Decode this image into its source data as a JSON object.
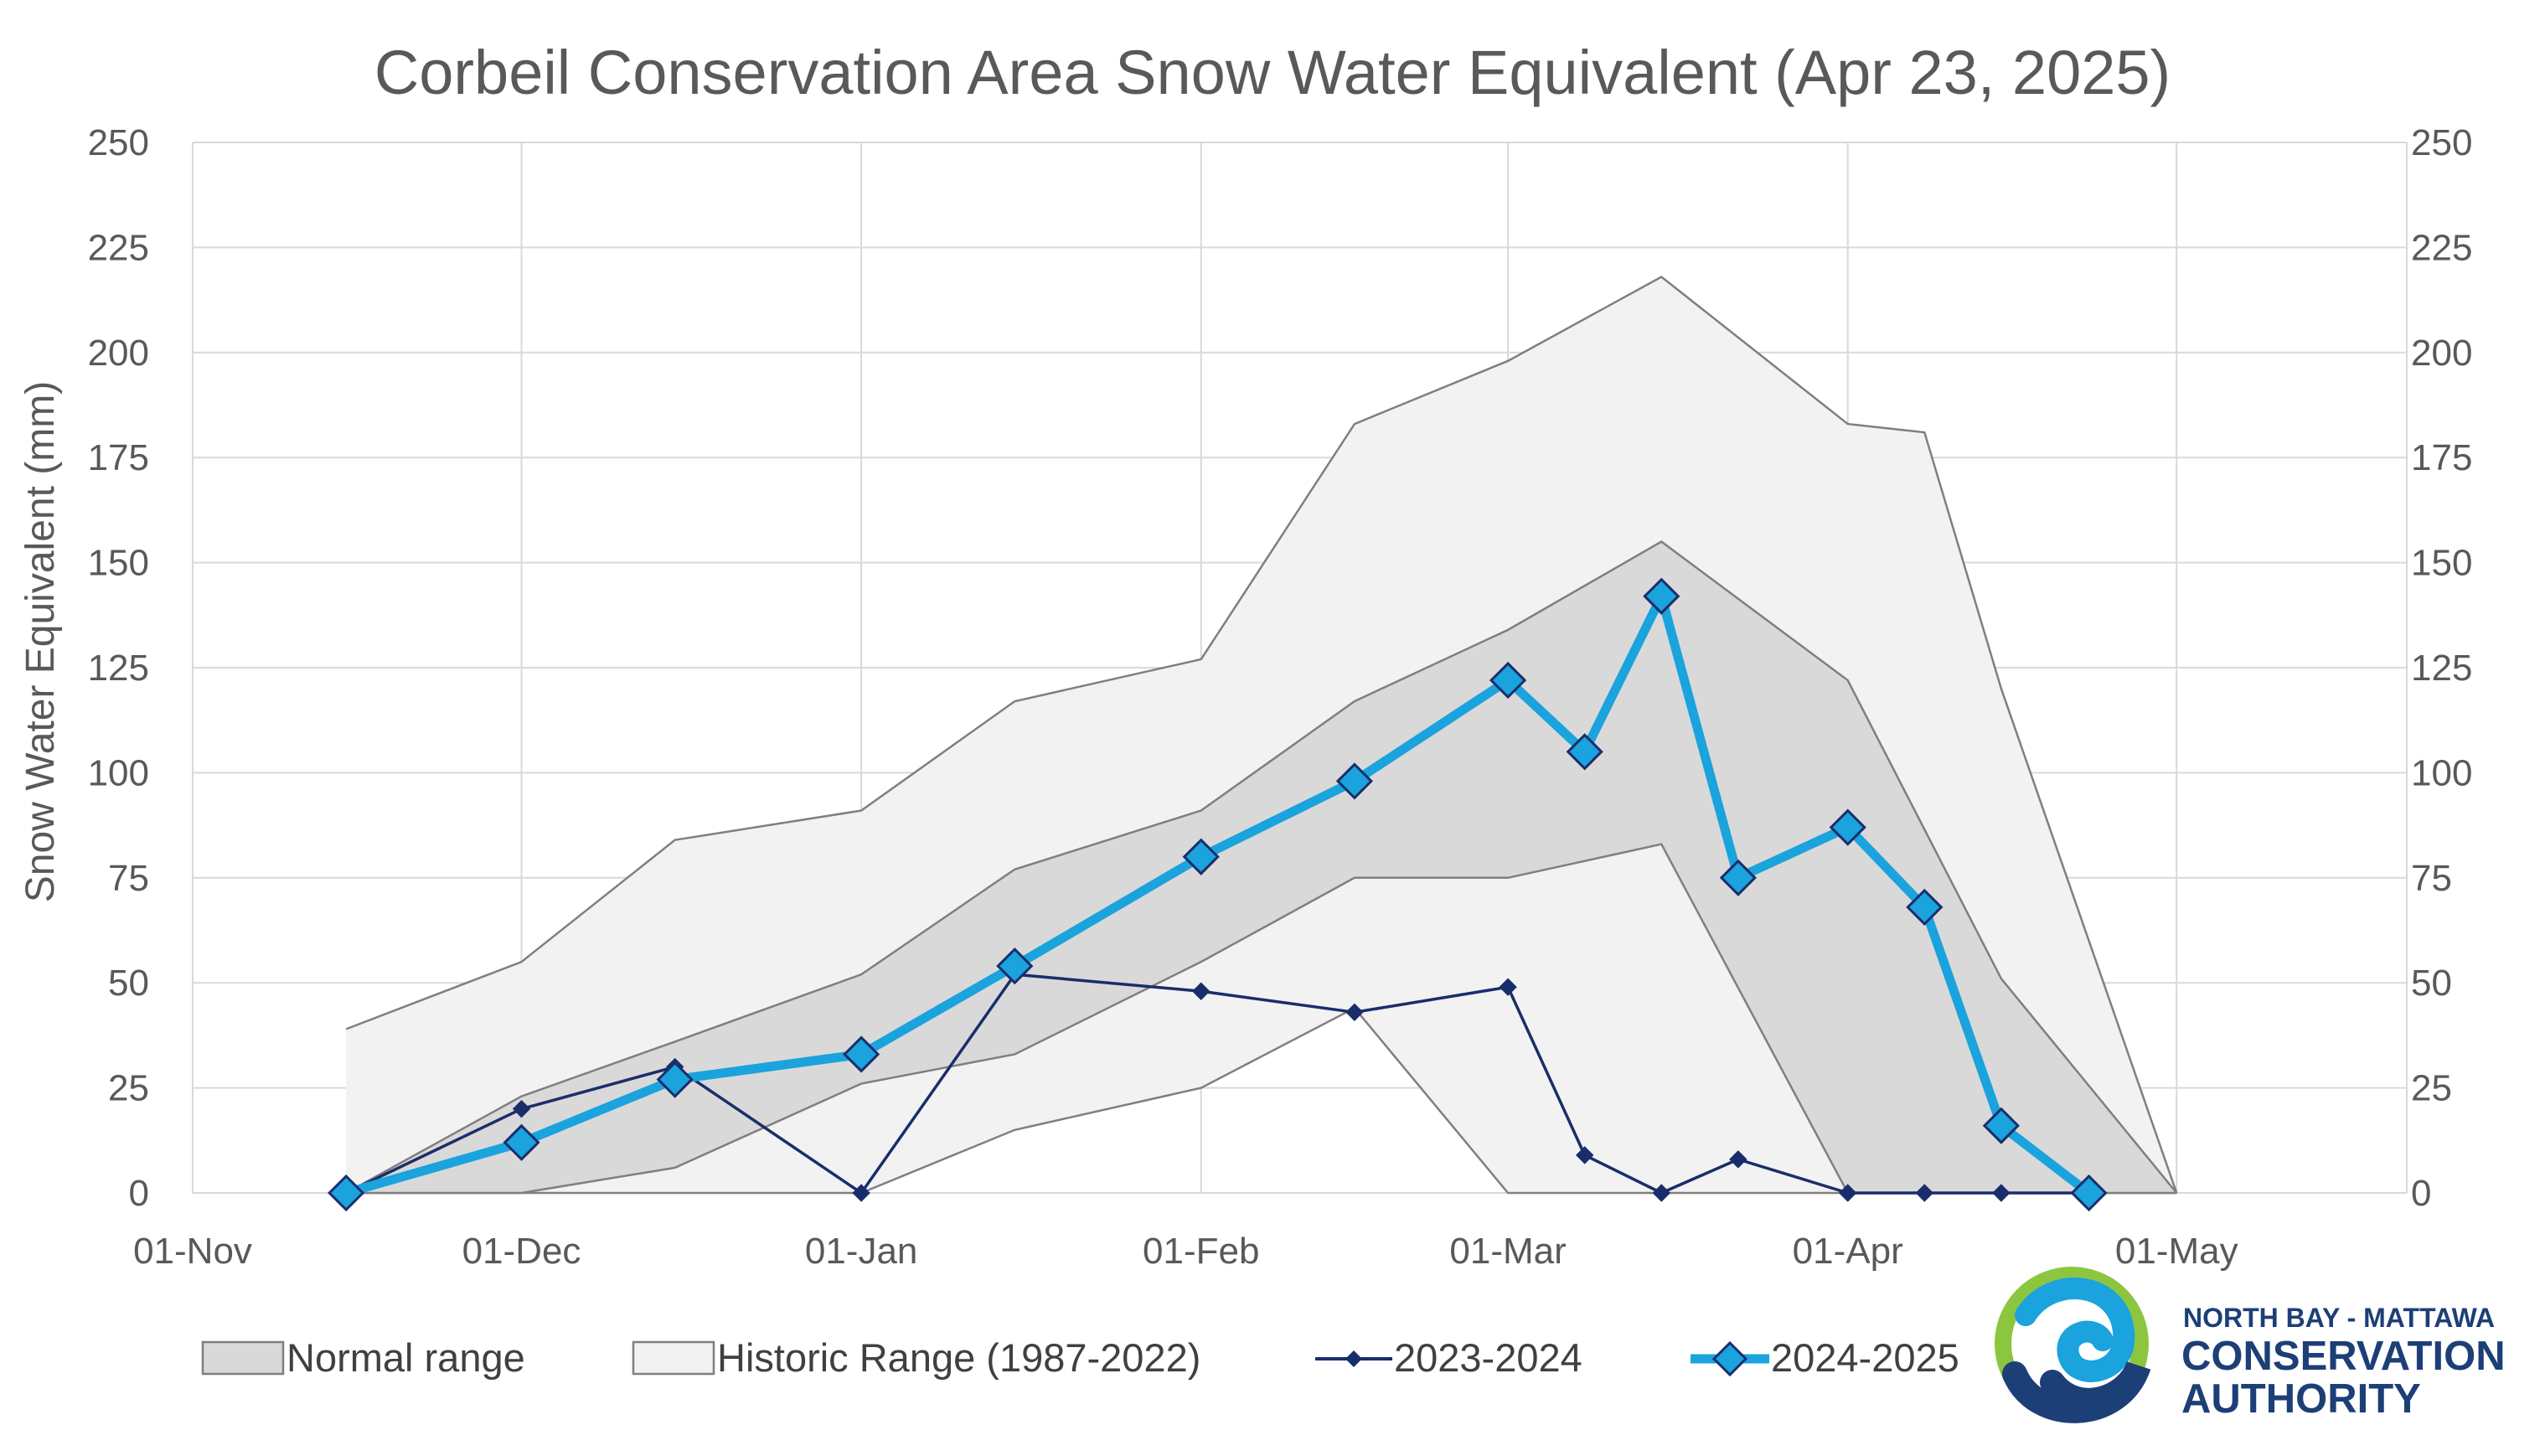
{
  "chart_data": {
    "type": "line",
    "title": "Corbeil Conservation Area Snow Water Equivalent (Apr 23, 2025)",
    "ylabel": "Snow Water Equivalent (mm)",
    "xlabel": "",
    "ylim": [
      0,
      250
    ],
    "y_ticks": [
      0,
      25,
      50,
      75,
      100,
      125,
      150,
      175,
      200,
      225,
      250
    ],
    "y_tick_labels": [
      "0",
      "25",
      "50",
      "75",
      "100",
      "125",
      "150",
      "175",
      "200",
      "225",
      "250"
    ],
    "secondary_y_axis": true,
    "xlim": [
      "2024-11-01",
      "2025-05-22"
    ],
    "x_ticks": [
      "2024-11-01",
      "2024-12-01",
      "2025-01-01",
      "2025-02-01",
      "2025-03-01",
      "2025-04-01",
      "2025-05-01"
    ],
    "x_tick_labels": [
      "01-Nov",
      "01-Dec",
      "01-Jan",
      "01-Feb",
      "01-Mar",
      "01-Apr",
      "01-May"
    ],
    "grid": true,
    "legend_position": "bottom",
    "legend": [
      "Normal range",
      "Historic Range (1987-2022)",
      "2023-2024",
      "2024-2025"
    ],
    "bands": [
      {
        "name": "Historic Range (1987-2022)",
        "color": "#f2f2f2",
        "border": "#7f7f7f",
        "x": [
          "2024-11-15",
          "2024-12-01",
          "2024-12-15",
          "2025-01-01",
          "2025-01-15",
          "2025-02-01",
          "2025-02-15",
          "2025-03-01",
          "2025-03-15",
          "2025-04-01",
          "2025-04-08",
          "2025-04-15",
          "2025-05-01"
        ],
        "upper": [
          39,
          55,
          84,
          91,
          117,
          127,
          183,
          198,
          218,
          183,
          181,
          120,
          0
        ],
        "lower": [
          0,
          0,
          0,
          0,
          15,
          25,
          44,
          0,
          0,
          0,
          0,
          0,
          0
        ]
      },
      {
        "name": "Normal range",
        "color": "#d9d9d9",
        "border": "#7f7f7f",
        "x": [
          "2024-11-15",
          "2024-12-01",
          "2024-12-15",
          "2025-01-01",
          "2025-01-15",
          "2025-02-01",
          "2025-02-15",
          "2025-03-01",
          "2025-03-15",
          "2025-04-01",
          "2025-04-15",
          "2025-05-01"
        ],
        "upper": [
          0,
          23,
          36,
          52,
          77,
          91,
          117,
          134,
          155,
          122,
          51,
          0
        ],
        "lower": [
          0,
          0,
          6,
          26,
          33,
          55,
          75,
          75,
          83,
          0,
          0,
          0
        ]
      }
    ],
    "series": [
      {
        "name": "2023-2024",
        "color": "#1a2d6b",
        "x": [
          "2024-11-15",
          "2024-12-01",
          "2024-12-15",
          "2025-01-01",
          "2025-01-15",
          "2025-02-01",
          "2025-02-15",
          "2025-03-01",
          "2025-03-08",
          "2025-03-15",
          "2025-03-22",
          "2025-04-01",
          "2025-04-08",
          "2025-04-15",
          "2025-04-23"
        ],
        "values": [
          0,
          20,
          30,
          0,
          52,
          48,
          43,
          49,
          9,
          0,
          8,
          0,
          0,
          0,
          0
        ]
      },
      {
        "name": "2024-2025",
        "color": "#1aa3dd",
        "x": [
          "2024-11-15",
          "2024-12-01",
          "2024-12-15",
          "2025-01-01",
          "2025-01-15",
          "2025-02-01",
          "2025-02-15",
          "2025-03-01",
          "2025-03-08",
          "2025-03-15",
          "2025-03-22",
          "2025-04-01",
          "2025-04-08",
          "2025-04-15",
          "2025-04-23"
        ],
        "values": [
          0,
          12,
          27,
          33,
          54,
          80,
          98,
          122,
          105,
          142,
          75,
          87,
          68,
          16,
          0
        ]
      }
    ]
  },
  "logo": {
    "line1": "NORTH BAY - MATTAWA",
    "line2": "CONSERVATION",
    "line3": "AUTHORITY"
  },
  "colors": {
    "grid": "#d9d9d9",
    "text": "#595959",
    "logo_green": "#8cc63f",
    "logo_blue": "#1aa3dd",
    "logo_navy": "#1d3f77"
  }
}
